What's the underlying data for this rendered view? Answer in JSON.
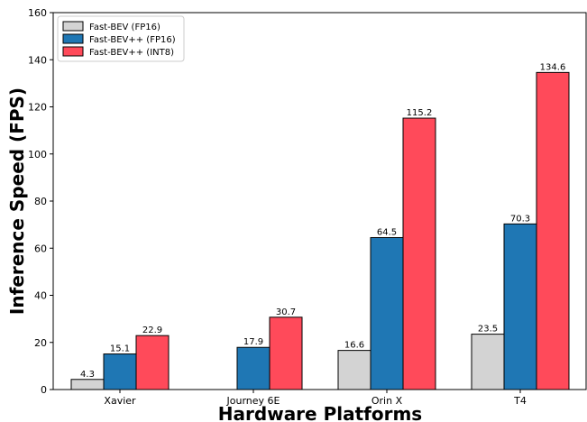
{
  "chart_data": {
    "type": "bar",
    "xlabel": "Hardware Platforms",
    "ylabel": "Inference Speed (FPS)",
    "ylim": [
      0,
      160
    ],
    "yticks": [
      0,
      20,
      40,
      60,
      80,
      100,
      120,
      140,
      160
    ],
    "categories": [
      "Xavier",
      "Journey 6E",
      "Orin X",
      "T4"
    ],
    "series": [
      {
        "name": "Fast-BEV (FP16)",
        "color": "#d3d3d3",
        "values": [
          4.3,
          null,
          16.6,
          23.5
        ]
      },
      {
        "name": "Fast-BEV++ (FP16)",
        "color": "#1f77b4",
        "values": [
          15.1,
          17.9,
          64.5,
          70.3
        ]
      },
      {
        "name": "Fast-BEV++ (INT8)",
        "color": "#ff4a5a",
        "values": [
          22.9,
          30.7,
          115.2,
          134.6
        ]
      }
    ],
    "legend_position": "top-left",
    "grid": false
  }
}
